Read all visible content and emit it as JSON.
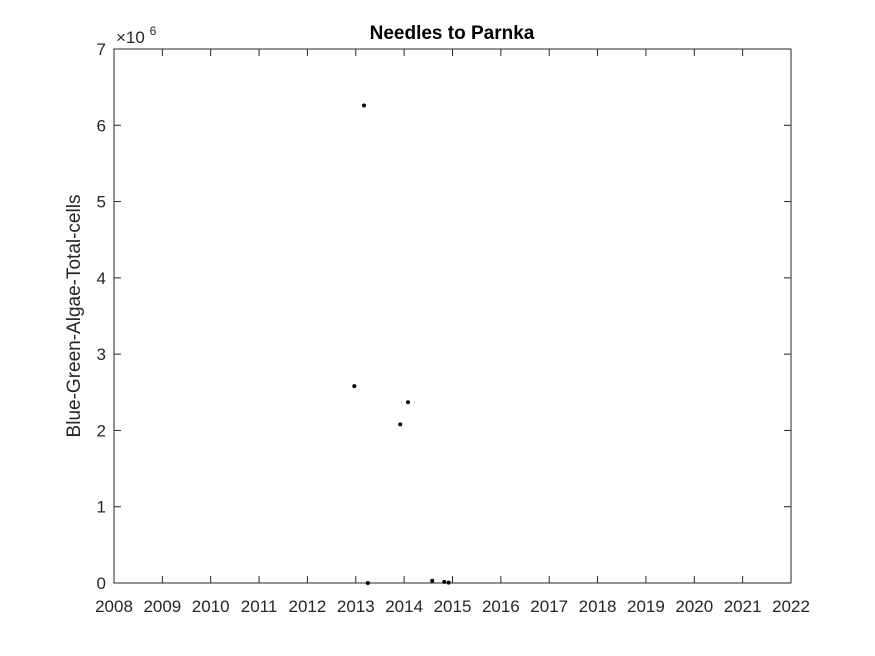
{
  "chart_data": {
    "type": "scatter",
    "title": "Needles to Parnka",
    "xlabel": "",
    "ylabel": "Blue-Green-Algae-Total-cells",
    "xlim": [
      2008,
      2022
    ],
    "ylim": [
      0,
      7000000
    ],
    "x_ticks": [
      "2008",
      "2009",
      "2010",
      "2011",
      "2012",
      "2013",
      "2014",
      "2015",
      "2016",
      "2017",
      "2018",
      "2019",
      "2020",
      "2021",
      "2022"
    ],
    "y_ticks": [
      "0",
      "1",
      "2",
      "3",
      "4",
      "5",
      "6",
      "7"
    ],
    "y_exponent_label": {
      "base": "×10",
      "power": "6"
    },
    "grid": false,
    "marker_color": "#000000",
    "points": [
      {
        "x": 2012.97,
        "y": 2580000
      },
      {
        "x": 2013.17,
        "y": 6260000
      },
      {
        "x": 2013.25,
        "y": 0
      },
      {
        "x": 2013.92,
        "y": 2080000
      },
      {
        "x": 2014.08,
        "y": 2370000
      },
      {
        "x": 2014.58,
        "y": 30000
      },
      {
        "x": 2014.83,
        "y": 15000
      },
      {
        "x": 2014.92,
        "y": 5000
      }
    ]
  }
}
